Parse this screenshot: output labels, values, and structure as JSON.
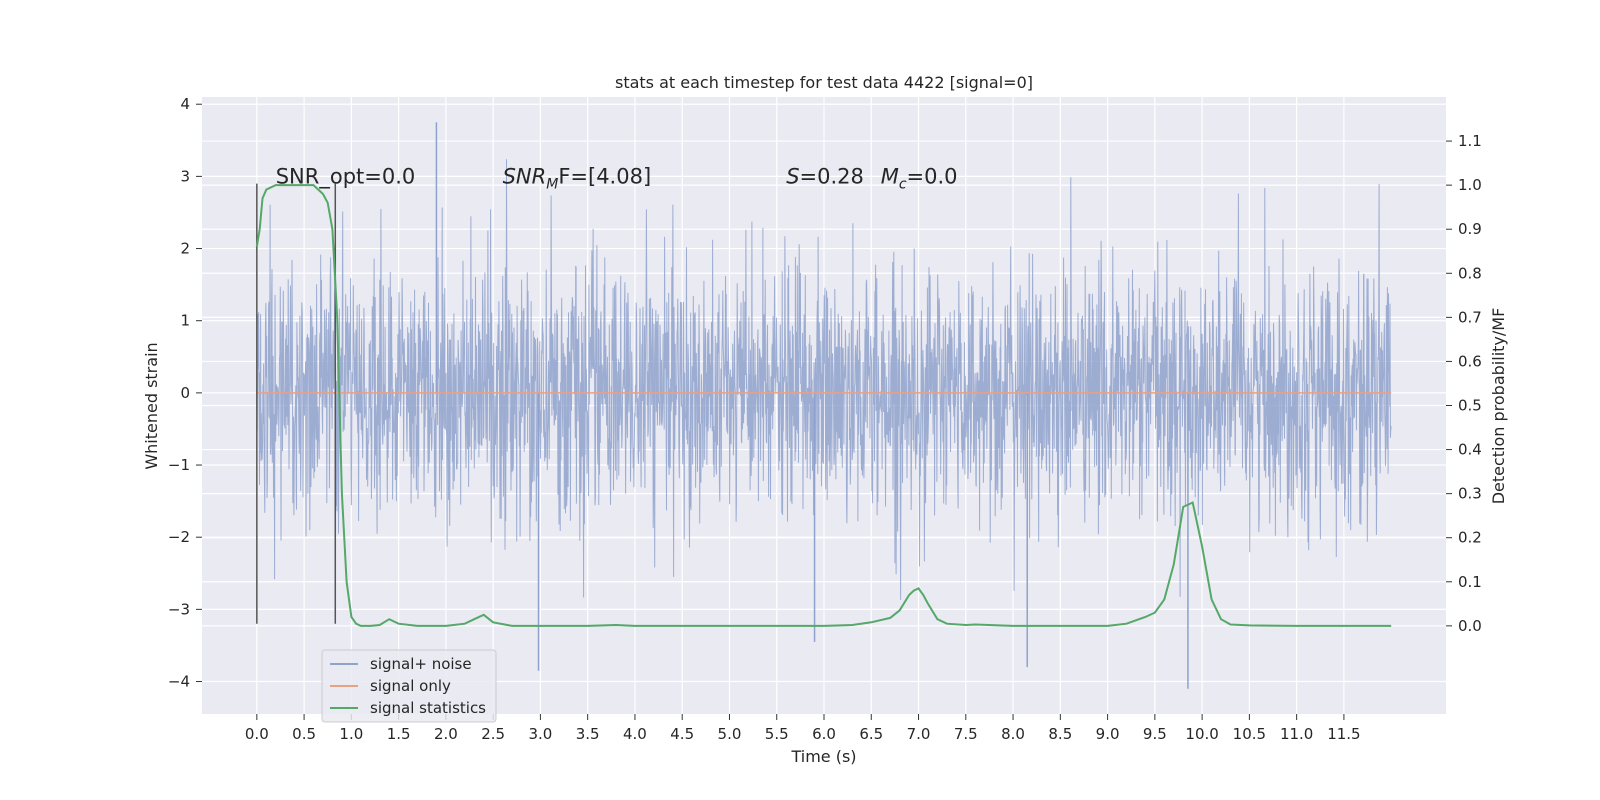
{
  "chart_data": {
    "type": "line",
    "title": "stats at each timestep for test data 4422 [signal=0]",
    "xlabel": "Time (s)",
    "ylabel": "Whitened strain",
    "ylabel_right": "Detection probability/MF",
    "xlim": [
      -0.58,
      12.58
    ],
    "ylim": [
      -4.45,
      4.1
    ],
    "ylim_right": [
      -0.2,
      1.2
    ],
    "x_ticks": [
      "0.0",
      "0.5",
      "1.0",
      "1.5",
      "2.0",
      "2.5",
      "3.0",
      "3.5",
      "4.0",
      "4.5",
      "5.0",
      "5.5",
      "6.0",
      "6.5",
      "7.0",
      "7.5",
      "8.0",
      "8.5",
      "9.0",
      "9.5",
      "10.0",
      "10.5",
      "11.0",
      "11.5"
    ],
    "y_ticks_left": [
      "4",
      "3",
      "2",
      "1",
      "0",
      "−1",
      "−2",
      "−3",
      "−4"
    ],
    "y_ticks_right": [
      "1.1",
      "1.0",
      "0.9",
      "0.8",
      "0.7",
      "0.6",
      "0.5",
      "0.4",
      "0.3",
      "0.2",
      "0.1",
      "0.0"
    ],
    "grid": true,
    "legend_position": "lower-left",
    "series": [
      {
        "name": "signal+ noise",
        "color": "#8fa2cd",
        "x_range": [
          0.0,
          12.0
        ],
        "noise_sigma": 0.85,
        "noise_extremes": [
          3.75,
          -4.1
        ]
      },
      {
        "name": "signal only",
        "color": "#e8a183",
        "x": [
          0.0,
          12.0
        ],
        "values": [
          0.0,
          0.0
        ]
      },
      {
        "name": "signal statistics",
        "color": "#55a868",
        "axis": "right",
        "x": [
          0.0,
          0.03,
          0.06,
          0.1,
          0.15,
          0.2,
          0.3,
          0.4,
          0.5,
          0.6,
          0.65,
          0.7,
          0.75,
          0.8,
          0.85,
          0.9,
          0.95,
          1.0,
          1.05,
          1.1,
          1.2,
          1.3,
          1.4,
          1.5,
          1.7,
          2.0,
          2.2,
          2.3,
          2.4,
          2.5,
          2.7,
          3.0,
          3.5,
          3.8,
          4.0,
          4.5,
          5.0,
          5.5,
          6.0,
          6.3,
          6.5,
          6.7,
          6.8,
          6.9,
          6.95,
          7.0,
          7.05,
          7.1,
          7.2,
          7.3,
          7.5,
          7.6,
          8.0,
          8.5,
          9.0,
          9.2,
          9.4,
          9.5,
          9.6,
          9.7,
          9.8,
          9.9,
          10.0,
          10.1,
          10.2,
          10.3,
          10.5,
          11.0,
          11.5,
          12.0
        ],
        "values": [
          0.86,
          0.9,
          0.97,
          0.99,
          0.995,
          1.0,
          1.0,
          1.0,
          1.0,
          1.0,
          0.99,
          0.98,
          0.96,
          0.9,
          0.7,
          0.3,
          0.1,
          0.02,
          0.005,
          0.0,
          0.0,
          0.002,
          0.015,
          0.005,
          0.0,
          0.0,
          0.005,
          0.015,
          0.025,
          0.008,
          0.0,
          0.0,
          0.0,
          0.002,
          0.0,
          0.0,
          0.0,
          0.0,
          0.0,
          0.002,
          0.008,
          0.018,
          0.035,
          0.07,
          0.08,
          0.085,
          0.07,
          0.05,
          0.015,
          0.005,
          0.002,
          0.003,
          0.0,
          0.0,
          0.0,
          0.005,
          0.02,
          0.03,
          0.06,
          0.14,
          0.27,
          0.28,
          0.18,
          0.06,
          0.015,
          0.003,
          0.001,
          0.0,
          0.0,
          0.0
        ]
      }
    ],
    "vertical_markers": [
      {
        "x": 0.0,
        "y_range": [
          -3.2,
          2.9
        ]
      },
      {
        "x": 0.83,
        "y_range": [
          -3.2,
          2.9
        ]
      }
    ],
    "annotations": [
      {
        "text": "SNR_opt=0.0",
        "x": 0.2,
        "y": 3.0
      },
      {
        "text": "SNR",
        "sub": "M",
        "rest": "F=[4.08]",
        "x": 2.6,
        "y": 3.0
      },
      {
        "text": "S",
        "rest": "=0.28",
        "x": 5.6,
        "y": 3.0
      },
      {
        "text": "M",
        "sub": "c",
        "rest": "=0.0",
        "x": 6.6,
        "y": 3.0
      }
    ]
  }
}
